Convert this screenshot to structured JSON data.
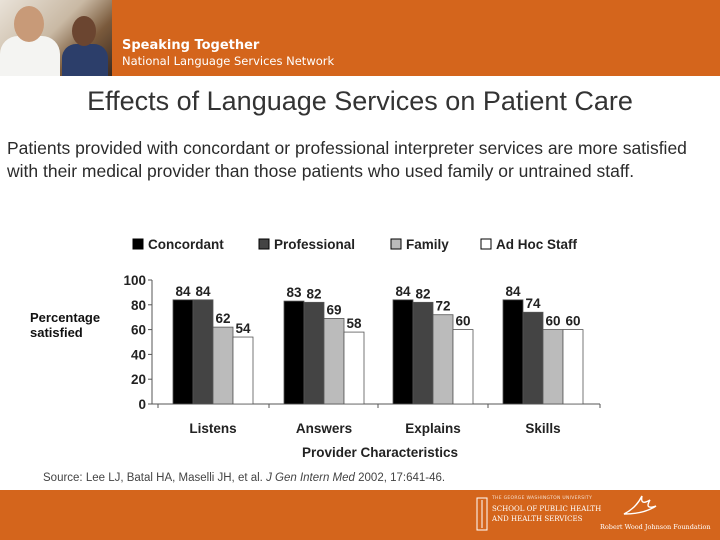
{
  "header": {
    "brand_line1": "Speaking Together",
    "brand_line2": "National Language Services Network"
  },
  "slide": {
    "title": "Effects of Language Services on Patient Care",
    "subtitle": "Patients provided with concordant or professional interpreter services are more satisfied with their medical provider than those patients who used family or untrained staff."
  },
  "source": {
    "prefix": "Source: Lee LJ, Batal HA, Maselli JH, et al. ",
    "journal": "J Gen Intern Med",
    "suffix": " 2002, 17:641-46."
  },
  "footer": {
    "logo1_line1": "THE GEORGE WASHINGTON UNIVERSITY",
    "logo1_line2": "SCHOOL OF PUBLIC HEALTH",
    "logo1_line3": "AND HEALTH SERVICES",
    "logo2_text": "Robert Wood Johnson Foundation"
  },
  "colors": {
    "accent": "#d4651c",
    "concordant": "#000000",
    "professional": "#444444",
    "family": "#bbbbbb",
    "adhoc": "#ffffff"
  },
  "chart_data": {
    "type": "bar",
    "categories": [
      "Listens",
      "Answers",
      "Explains",
      "Skills"
    ],
    "series": [
      {
        "name": "Concordant",
        "values": [
          84,
          83,
          84,
          84
        ],
        "color": "#000000"
      },
      {
        "name": "Professional",
        "values": [
          84,
          82,
          82,
          74
        ],
        "color": "#444444"
      },
      {
        "name": "Family",
        "values": [
          62,
          69,
          72,
          60
        ],
        "color": "#bbbbbb"
      },
      {
        "name": "Ad Hoc Staff",
        "values": [
          54,
          58,
          60,
          60
        ],
        "color": "#ffffff"
      }
    ],
    "xlabel": "Provider Characteristics",
    "ylabel": "Percentage satisfied",
    "ylim": [
      0,
      100
    ],
    "yticks": [
      0,
      20,
      40,
      60,
      80,
      100
    ],
    "legend_position": "top",
    "grid": false
  }
}
